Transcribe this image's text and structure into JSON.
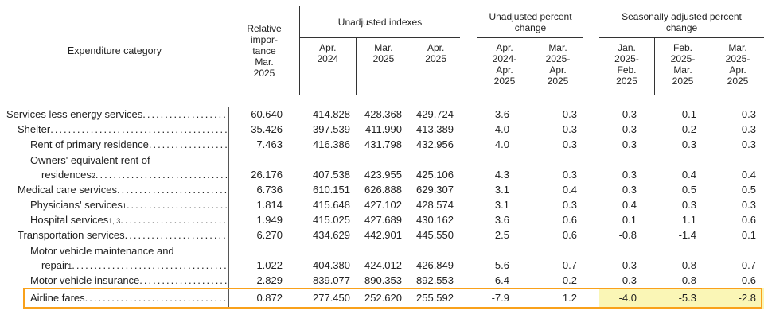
{
  "colors": {
    "highlight_border": "#F9A11B",
    "highlight_fill": "#FAF6B6",
    "rule": "#555555",
    "text": "#222222"
  },
  "header": {
    "expenditure_category_label": "Expenditure category",
    "relative_importance_label": "Relative\nimpor-\ntance\nMar.\n2025",
    "groups": [
      {
        "title": "Unadjusted indexes",
        "columns": [
          "Apr.\n2024",
          "Mar.\n2025",
          "Apr.\n2025"
        ]
      },
      {
        "title": "Unadjusted percent\nchange",
        "columns": [
          "Apr.\n2024-\nApr.\n2025",
          "Mar.\n2025-\nApr.\n2025"
        ]
      },
      {
        "title": "Seasonally adjusted percent\nchange",
        "columns": [
          "Jan.\n2025-\nFeb.\n2025",
          "Feb.\n2025-\nMar.\n2025",
          "Mar.\n2025-\nApr.\n2025"
        ]
      }
    ]
  },
  "table": {
    "rows": [
      {
        "label": "Services less energy services",
        "indent": 0,
        "values": [
          "60.640",
          "414.828",
          "428.368",
          "429.724",
          "3.6",
          "0.3",
          "0.3",
          "0.1",
          "0.3"
        ]
      },
      {
        "label": "Shelter",
        "indent": 1,
        "values": [
          "35.426",
          "397.539",
          "411.990",
          "413.389",
          "4.0",
          "0.3",
          "0.3",
          "0.2",
          "0.3"
        ]
      },
      {
        "label": "Rent of primary residence",
        "indent": 2,
        "values": [
          "7.463",
          "416.386",
          "431.798",
          "432.956",
          "4.0",
          "0.3",
          "0.3",
          "0.3",
          "0.3"
        ]
      },
      {
        "label": "Owners' equivalent rent of",
        "label2": "residences",
        "footnote2": "2",
        "indent": 2,
        "values": [
          "26.176",
          "407.538",
          "423.955",
          "425.106",
          "4.3",
          "0.3",
          "0.3",
          "0.4",
          "0.4"
        ]
      },
      {
        "label": "Medical care services",
        "indent": 1,
        "values": [
          "6.736",
          "610.151",
          "626.888",
          "629.307",
          "3.1",
          "0.4",
          "0.3",
          "0.5",
          "0.5"
        ]
      },
      {
        "label": "Physicians' services",
        "footnote": "1",
        "indent": 2,
        "values": [
          "1.814",
          "415.648",
          "427.102",
          "428.574",
          "3.1",
          "0.3",
          "0.4",
          "0.3",
          "0.3"
        ]
      },
      {
        "label": "Hospital services",
        "footnote": "1, 3",
        "indent": 2,
        "values": [
          "1.949",
          "415.025",
          "427.689",
          "430.162",
          "3.6",
          "0.6",
          "0.1",
          "1.1",
          "0.6"
        ]
      },
      {
        "label": "Transportation services",
        "indent": 1,
        "values": [
          "6.270",
          "434.629",
          "442.901",
          "445.550",
          "2.5",
          "0.6",
          "-0.8",
          "-1.4",
          "0.1"
        ]
      },
      {
        "label": "Motor vehicle maintenance and",
        "label2": "repair",
        "footnote2": "1",
        "indent": 2,
        "values": [
          "1.022",
          "404.380",
          "424.012",
          "426.849",
          "5.6",
          "0.7",
          "0.3",
          "0.8",
          "0.7"
        ]
      },
      {
        "label": "Motor vehicle insurance",
        "indent": 2,
        "values": [
          "2.829",
          "839.077",
          "890.353",
          "892.553",
          "6.4",
          "0.2",
          "0.3",
          "-0.8",
          "0.6"
        ]
      },
      {
        "label": "Airline fares",
        "indent": 2,
        "highlight": true,
        "highlight_cells": [
          6,
          7,
          8
        ],
        "values": [
          "0.872",
          "277.450",
          "252.620",
          "255.592",
          "-7.9",
          "1.2",
          "-4.0",
          "-5.3",
          "-2.8"
        ]
      }
    ]
  }
}
